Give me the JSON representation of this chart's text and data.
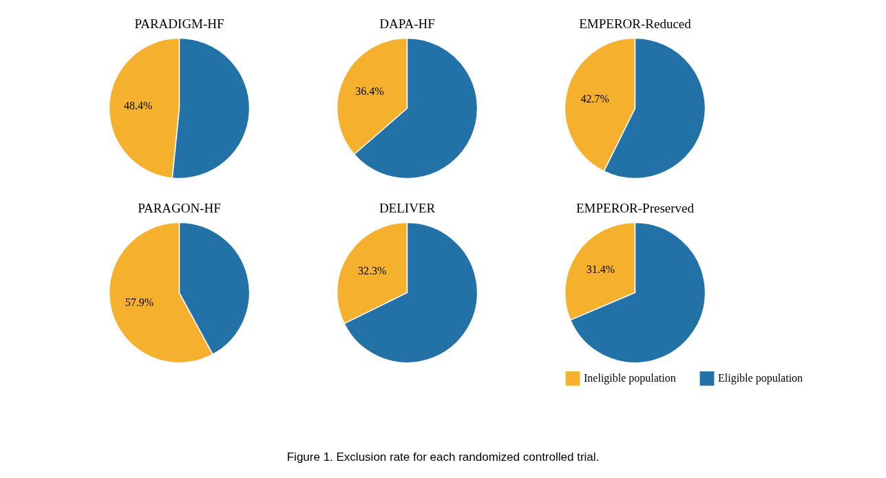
{
  "chart_data": [
    {
      "type": "pie",
      "title": "PARADIGM-HF",
      "categories": [
        null,
        null
      ],
      "values": [
        48.4,
        51.6
      ],
      "value_labels": [
        "48.4%",
        null
      ],
      "colors": [
        "#f5b12e",
        "#2272a8"
      ]
    },
    {
      "type": "pie",
      "title": "DAPA-HF",
      "categories": [
        null,
        null
      ],
      "values": [
        36.4,
        63.6
      ],
      "value_labels": [
        "36.4%",
        null
      ],
      "colors": [
        "#f5b12e",
        "#2272a8"
      ]
    },
    {
      "type": "pie",
      "title": "EMPEROR-Reduced",
      "categories": [
        null,
        null
      ],
      "values": [
        42.7,
        57.3
      ],
      "value_labels": [
        "42.7%",
        null
      ],
      "colors": [
        "#f5b12e",
        "#2272a8"
      ]
    },
    {
      "type": "pie",
      "title": "PARAGON-HF",
      "categories": [
        null,
        null
      ],
      "values": [
        57.9,
        42.1
      ],
      "value_labels": [
        "57.9%",
        null
      ],
      "colors": [
        "#f5b12e",
        "#2272a8"
      ]
    },
    {
      "type": "pie",
      "title": "DELIVER",
      "categories": [
        null,
        null
      ],
      "values": [
        32.3,
        67.7
      ],
      "value_labels": [
        "32.3%",
        null
      ],
      "colors": [
        "#f5b12e",
        "#2272a8"
      ]
    },
    {
      "type": "pie",
      "title": "EMPEROR-Preserved",
      "categories": [
        "Ineligible population",
        "Eligible population"
      ],
      "values": [
        31.4,
        68.6
      ],
      "value_labels": [
        "31.4%",
        null
      ],
      "colors": [
        "#f5b12e",
        "#2272a8"
      ],
      "legend": "bottom",
      "annotations": [
        "Figure 1.    Exclusion rate for each randomized controlled trial."
      ]
    }
  ]
}
